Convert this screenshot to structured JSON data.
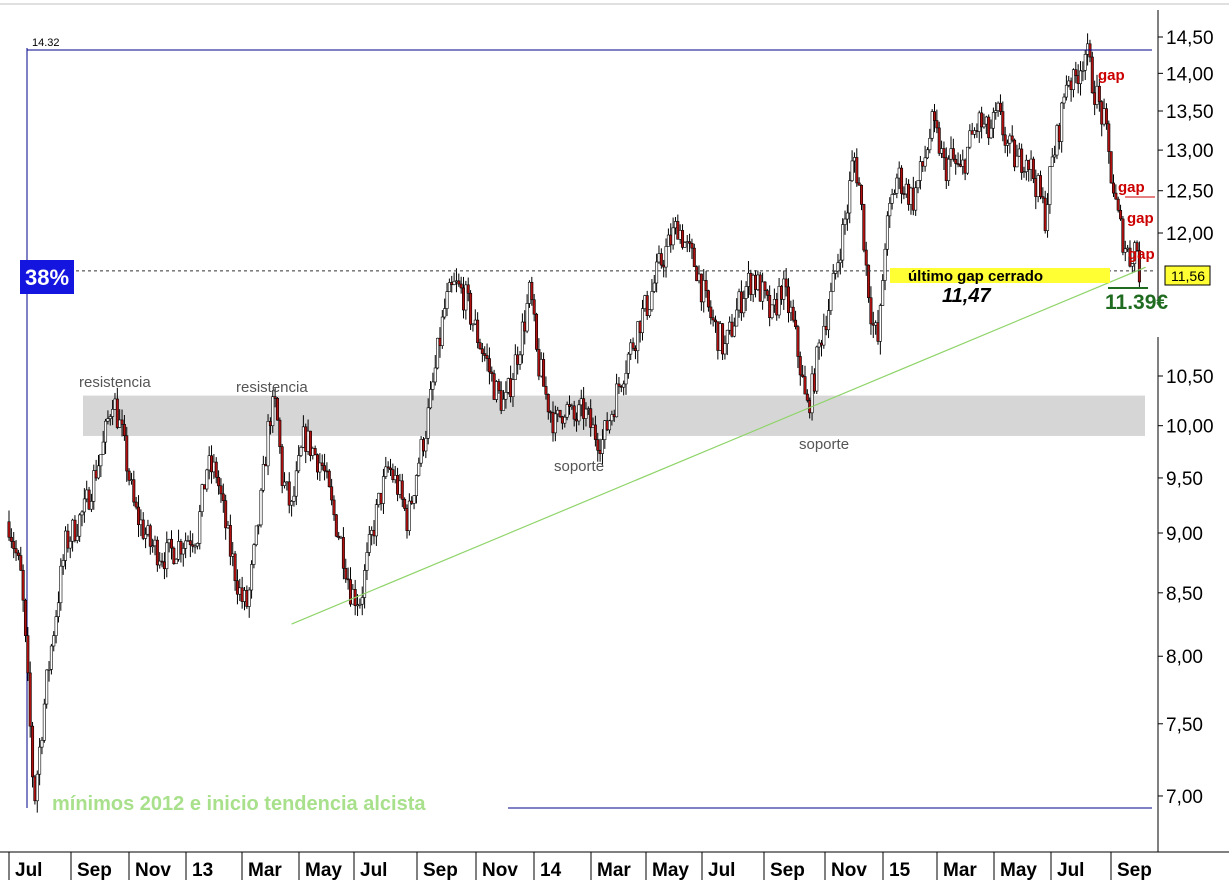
{
  "chart_data": {
    "type": "candlestick",
    "y_axis": {
      "scale": "log",
      "range": [
        6.7,
        14.6
      ],
      "ticks": [
        "14,50",
        "14,00",
        "13,50",
        "13,00",
        "12,50",
        "12,00",
        "10,50",
        "10,00",
        "9,50",
        "9,00",
        "8,50",
        "8,00",
        "7,50",
        "7,00"
      ]
    },
    "x_axis": {
      "labels": [
        "Jul",
        "Sep",
        "Nov",
        "13",
        "Mar",
        "May",
        "Jul",
        "Sep",
        "Nov",
        "14",
        "Mar",
        "May",
        "Jul",
        "Sep",
        "Nov",
        "15",
        "Mar",
        "May",
        "Jul",
        "Sep"
      ]
    },
    "price_path": [
      [
        0,
        9.1
      ],
      [
        4,
        8.6
      ],
      [
        8,
        6.95
      ],
      [
        12,
        7.8
      ],
      [
        18,
        8.9
      ],
      [
        24,
        9.2
      ],
      [
        30,
        9.8
      ],
      [
        33,
        10.3
      ],
      [
        36,
        9.9
      ],
      [
        40,
        9.2
      ],
      [
        45,
        8.9
      ],
      [
        50,
        8.8
      ],
      [
        56,
        8.95
      ],
      [
        60,
        9.0
      ],
      [
        63,
        9.6
      ],
      [
        66,
        9.55
      ],
      [
        70,
        8.9
      ],
      [
        74,
        8.45
      ],
      [
        76,
        8.4
      ],
      [
        80,
        9.2
      ],
      [
        83,
        10.1
      ],
      [
        85,
        10.2
      ],
      [
        87,
        9.5
      ],
      [
        90,
        9.2
      ],
      [
        94,
        9.9
      ],
      [
        97,
        9.75
      ],
      [
        100,
        9.6
      ],
      [
        103,
        9.2
      ],
      [
        106,
        8.9
      ],
      [
        109,
        8.5
      ],
      [
        112,
        8.45
      ],
      [
        115,
        8.9
      ],
      [
        118,
        9.3
      ],
      [
        121,
        9.6
      ],
      [
        124,
        9.4
      ],
      [
        127,
        9.1
      ],
      [
        130,
        9.6
      ],
      [
        133,
        10.0
      ],
      [
        136,
        10.6
      ],
      [
        139,
        11.2
      ],
      [
        142,
        11.4
      ],
      [
        145,
        11.3
      ],
      [
        149,
        10.9
      ],
      [
        152,
        10.65
      ],
      [
        155,
        10.35
      ],
      [
        158,
        10.2
      ],
      [
        161,
        10.6
      ],
      [
        164,
        11.0
      ],
      [
        166,
        11.35
      ],
      [
        168,
        10.7
      ],
      [
        171,
        10.3
      ],
      [
        174,
        10.0
      ],
      [
        177,
        10.2
      ],
      [
        180,
        10.05
      ],
      [
        183,
        10.15
      ],
      [
        186,
        9.95
      ],
      [
        189,
        9.85
      ],
      [
        192,
        10.15
      ],
      [
        195,
        10.5
      ],
      [
        198,
        10.75
      ],
      [
        201,
        11.05
      ],
      [
        204,
        11.25
      ],
      [
        207,
        11.6
      ],
      [
        210,
        11.85
      ],
      [
        213,
        12.1
      ],
      [
        216,
        11.8
      ],
      [
        219,
        11.6
      ],
      [
        222,
        11.2
      ],
      [
        225,
        10.95
      ],
      [
        228,
        10.75
      ],
      [
        231,
        11.05
      ],
      [
        234,
        11.35
      ],
      [
        237,
        11.5
      ],
      [
        240,
        11.3
      ],
      [
        243,
        11.05
      ],
      [
        246,
        11.4
      ],
      [
        249,
        11.1
      ],
      [
        252,
        10.6
      ],
      [
        254,
        10.15
      ],
      [
        256,
        10.4
      ],
      [
        259,
        10.95
      ],
      [
        262,
        11.3
      ],
      [
        265,
        11.9
      ],
      [
        267,
        12.3
      ],
      [
        269,
        12.95
      ],
      [
        271,
        12.5
      ],
      [
        273,
        11.6
      ],
      [
        275,
        11.0
      ],
      [
        277,
        10.8
      ],
      [
        279,
        11.9
      ],
      [
        281,
        12.35
      ],
      [
        283,
        12.7
      ],
      [
        285,
        12.55
      ],
      [
        288,
        12.4
      ],
      [
        291,
        12.8
      ],
      [
        294,
        13.3
      ],
      [
        296,
        13.1
      ],
      [
        298,
        12.75
      ],
      [
        300,
        12.9
      ],
      [
        303,
        12.7
      ],
      [
        306,
        13.1
      ],
      [
        309,
        13.35
      ],
      [
        312,
        13.2
      ],
      [
        315,
        13.45
      ],
      [
        318,
        13.05
      ],
      [
        321,
        12.85
      ],
      [
        324,
        12.95
      ],
      [
        327,
        12.6
      ],
      [
        330,
        12.2
      ],
      [
        332,
        12.8
      ],
      [
        335,
        13.4
      ],
      [
        337,
        14.0
      ],
      [
        339,
        13.85
      ],
      [
        341,
        14.1
      ],
      [
        343,
        14.32
      ],
      [
        345,
        13.9
      ],
      [
        347,
        13.6
      ],
      [
        349,
        13.3
      ],
      [
        351,
        12.7
      ],
      [
        353,
        12.2
      ],
      [
        355,
        11.9
      ],
      [
        357,
        11.7
      ],
      [
        359,
        11.9
      ],
      [
        360,
        11.56
      ]
    ],
    "resistance_zone": [
      9.9,
      10.3
    ],
    "trendline": {
      "from": [
        90,
        8.25
      ],
      "to": [
        362,
        11.6
      ]
    },
    "reference_lines": [
      {
        "label": "14.32",
        "value": 14.32
      },
      {
        "label": "38%",
        "value": 11.56
      },
      {
        "label": "",
        "value": 6.92
      }
    ],
    "last_price": "11,56",
    "annotations": [
      {
        "text": "resistencia",
        "at": [
          23,
          10.55
        ]
      },
      {
        "text": "resistencia",
        "at": [
          80,
          10.5
        ]
      },
      {
        "text": "soporte",
        "at": [
          180,
          9.62
        ]
      },
      {
        "text": "soporte",
        "at": [
          254,
          9.81
        ]
      },
      {
        "text": "gap",
        "at": [
          353,
          14.0
        ]
      },
      {
        "text": "gap",
        "at": [
          355,
          12.5
        ]
      },
      {
        "text": "gap",
        "at": [
          356,
          12.18
        ]
      },
      {
        "text": "gap",
        "at": [
          356,
          11.72
        ]
      }
    ],
    "gap_text": "último gap cerrado",
    "value_1147": "11,47",
    "value_1139": "11.39€",
    "footer_note": "mínimos 2012 e inicio tendencia alcista",
    "colors": {
      "candle": "#000000",
      "candle_down": "#b01010",
      "zone": "#d6d6d6",
      "trendline": "#8fd46a",
      "gap": "#cc0000",
      "badge": "#1515e0",
      "highlight": "#ffff33",
      "green_text": "#1f6b1f",
      "footer": "#a8e08c",
      "axis_line": "#00008b"
    }
  }
}
